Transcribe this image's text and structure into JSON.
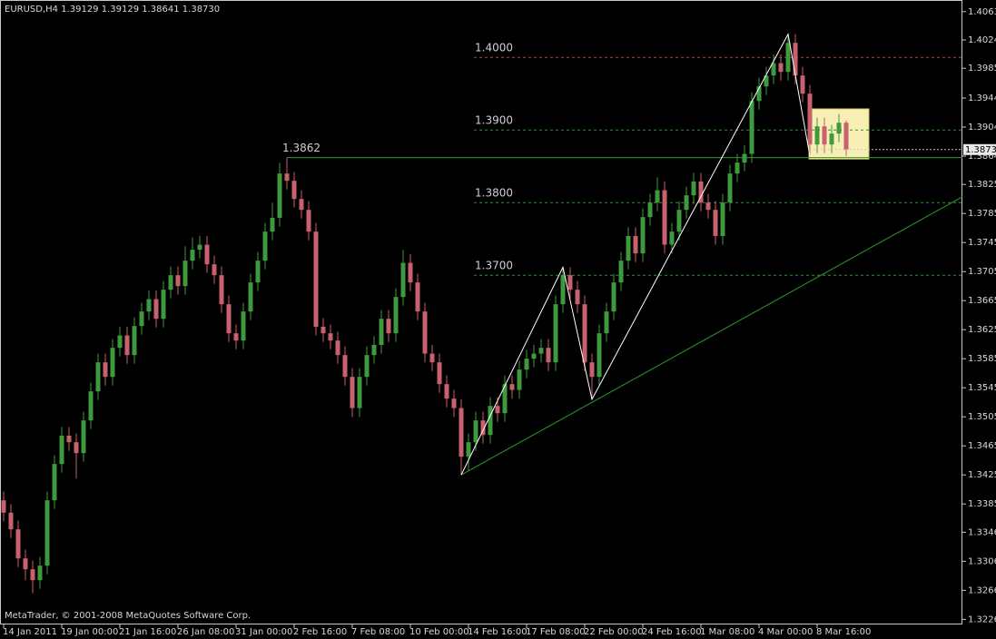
{
  "chart_data": {
    "type": "candlestick",
    "title": "EURUSD,H4  1.39129 1.39129 1.38641 1.38730",
    "footer": "MetaTrader, © 2001-2008 MetaQuotes Software Corp.",
    "up_color": "#3f9a3f",
    "down_color": "#c8606e",
    "categories": [
      "14 Jan 2011",
      null,
      null,
      null,
      null,
      null,
      null,
      null,
      "19 Jan 00:00",
      null,
      null,
      null,
      null,
      null,
      null,
      null,
      "21 Jan 16:00",
      null,
      null,
      null,
      null,
      null,
      null,
      null,
      "26 Jan 08:00",
      null,
      null,
      null,
      null,
      null,
      null,
      null,
      "31 Jan 00:00",
      null,
      null,
      null,
      null,
      null,
      null,
      null,
      "2 Feb 16:00",
      null,
      null,
      null,
      null,
      null,
      null,
      null,
      "7 Feb 08:00",
      null,
      null,
      null,
      null,
      null,
      null,
      null,
      "10 Feb 00:00",
      null,
      null,
      null,
      null,
      null,
      null,
      null,
      "14 Feb 16:00",
      null,
      null,
      null,
      null,
      null,
      null,
      null,
      "17 Feb 08:00",
      null,
      null,
      null,
      null,
      null,
      null,
      null,
      "22 Feb 00:00",
      null,
      null,
      null,
      null,
      null,
      null,
      null,
      "24 Feb 16:00",
      null,
      null,
      null,
      null,
      null,
      null,
      null,
      "1 Mar 08:00",
      null,
      null,
      null,
      null,
      null,
      null,
      null,
      "4 Mar 00:00",
      null,
      null,
      null,
      null,
      null,
      null,
      null,
      "8 Mar 16:00",
      null,
      null,
      null,
      null
    ],
    "open": [
      1.339,
      1.3373,
      1.335,
      1.331,
      1.3295,
      1.328,
      1.33,
      1.339,
      1.344,
      1.3479,
      1.347,
      1.3455,
      1.35,
      1.354,
      1.358,
      1.356,
      1.36,
      1.3617,
      1.359,
      1.363,
      1.365,
      1.3667,
      1.364,
      1.368,
      1.37,
      1.3685,
      1.372,
      1.3735,
      1.3742,
      1.3715,
      1.37,
      1.366,
      1.362,
      1.361,
      1.365,
      1.369,
      1.372,
      1.376,
      1.3779,
      1.384,
      1.383,
      1.3805,
      1.379,
      1.376,
      1.3629,
      1.362,
      1.361,
      1.359,
      1.356,
      1.3517,
      1.356,
      1.359,
      1.3604,
      1.364,
      1.362,
      1.367,
      1.3717,
      1.369,
      1.365,
      1.3592,
      1.358,
      1.355,
      1.353,
      1.3517,
      1.345,
      1.347,
      1.35,
      1.348,
      1.352,
      1.351,
      1.355,
      1.3542,
      1.357,
      1.3585,
      1.3592,
      1.36,
      1.358,
      1.366,
      1.37,
      1.368,
      1.366,
      1.358,
      1.356,
      1.362,
      1.365,
      1.369,
      1.372,
      1.3754,
      1.373,
      1.378,
      1.38,
      1.3817,
      1.3742,
      1.376,
      1.379,
      1.381,
      1.3829,
      1.38,
      1.379,
      1.3754,
      1.38,
      1.384,
      1.3855,
      1.3867,
      1.394,
      1.396,
      1.3975,
      1.3992,
      1.398,
      1.402,
      1.3975,
      1.395,
      1.388,
      1.3905,
      1.388,
      1.3895,
      1.391
    ],
    "high": [
      1.3402,
      1.3385,
      1.3362,
      1.3322,
      1.3307,
      1.3312,
      1.3402,
      1.3452,
      1.3491,
      1.3491,
      1.3482,
      1.3512,
      1.3552,
      1.3592,
      1.3592,
      1.3612,
      1.3629,
      1.3629,
      1.3642,
      1.3662,
      1.3679,
      1.3679,
      1.3692,
      1.3712,
      1.3712,
      1.374,
      1.3752,
      1.3754,
      1.3754,
      1.3727,
      1.3712,
      1.3672,
      1.3632,
      1.3662,
      1.3702,
      1.3732,
      1.3772,
      1.38,
      1.3855,
      1.3862,
      1.3842,
      1.3817,
      1.3802,
      1.3772,
      1.3641,
      1.3632,
      1.3622,
      1.3602,
      1.3572,
      1.3572,
      1.3602,
      1.3616,
      1.3652,
      1.3652,
      1.3682,
      1.3735,
      1.3729,
      1.3702,
      1.3662,
      1.3604,
      1.3592,
      1.3562,
      1.3542,
      1.3529,
      1.3482,
      1.3512,
      1.3512,
      1.3532,
      1.3532,
      1.3562,
      1.3562,
      1.3582,
      1.3597,
      1.3604,
      1.3612,
      1.3612,
      1.3672,
      1.3711,
      1.3711,
      1.3692,
      1.3672,
      1.3592,
      1.3632,
      1.3662,
      1.3702,
      1.3732,
      1.3766,
      1.3766,
      1.3792,
      1.3812,
      1.3835,
      1.3829,
      1.3772,
      1.3802,
      1.3822,
      1.3841,
      1.3841,
      1.3812,
      1.3802,
      1.3812,
      1.3852,
      1.3867,
      1.3879,
      1.3952,
      1.3972,
      1.3987,
      1.4004,
      1.4004,
      1.4032,
      1.4032,
      1.3987,
      1.3962,
      1.3917,
      1.3917,
      1.3907,
      1.3922,
      1.3913
    ],
    "low": [
      1.3361,
      1.3338,
      1.3298,
      1.328,
      1.3262,
      1.3268,
      1.3288,
      1.3378,
      1.3428,
      1.3458,
      1.342,
      1.3443,
      1.3488,
      1.3528,
      1.3548,
      1.3548,
      1.3588,
      1.3578,
      1.3578,
      1.3618,
      1.3638,
      1.3628,
      1.3628,
      1.3668,
      1.3673,
      1.3673,
      1.3708,
      1.3723,
      1.3703,
      1.3688,
      1.3648,
      1.3608,
      1.3598,
      1.3598,
      1.3638,
      1.3678,
      1.3708,
      1.3748,
      1.3767,
      1.3818,
      1.3793,
      1.3778,
      1.3748,
      1.3617,
      1.3608,
      1.3598,
      1.3578,
      1.3548,
      1.3505,
      1.3505,
      1.3548,
      1.3578,
      1.3592,
      1.3608,
      1.3608,
      1.3658,
      1.3678,
      1.3638,
      1.358,
      1.3568,
      1.3538,
      1.3518,
      1.3505,
      1.3425,
      1.343,
      1.3458,
      1.3468,
      1.3468,
      1.3498,
      1.3498,
      1.353,
      1.353,
      1.3558,
      1.3573,
      1.358,
      1.3568,
      1.3568,
      1.3648,
      1.3668,
      1.3648,
      1.3568,
      1.3529,
      1.3548,
      1.3608,
      1.3638,
      1.3678,
      1.3708,
      1.3718,
      1.3718,
      1.3768,
      1.3788,
      1.373,
      1.373,
      1.3748,
      1.3778,
      1.3798,
      1.3788,
      1.3778,
      1.3742,
      1.3742,
      1.3788,
      1.3828,
      1.3843,
      1.3855,
      1.3928,
      1.3948,
      1.3963,
      1.3968,
      1.3968,
      1.3963,
      1.3938,
      1.3864,
      1.3868,
      1.3868,
      1.3868,
      1.3883,
      1.3864
    ],
    "close": [
      1.3373,
      1.335,
      1.331,
      1.3295,
      1.328,
      1.33,
      1.339,
      1.344,
      1.3479,
      1.347,
      1.3455,
      1.35,
      1.354,
      1.358,
      1.356,
      1.36,
      1.3617,
      1.359,
      1.363,
      1.365,
      1.3667,
      1.364,
      1.368,
      1.37,
      1.3685,
      1.372,
      1.3735,
      1.3742,
      1.3715,
      1.37,
      1.366,
      1.362,
      1.361,
      1.365,
      1.369,
      1.372,
      1.376,
      1.3779,
      1.384,
      1.383,
      1.3805,
      1.379,
      1.376,
      1.3629,
      1.362,
      1.361,
      1.359,
      1.356,
      1.3517,
      1.356,
      1.359,
      1.3604,
      1.364,
      1.362,
      1.367,
      1.3717,
      1.369,
      1.365,
      1.3592,
      1.358,
      1.355,
      1.353,
      1.3517,
      1.345,
      1.347,
      1.35,
      1.348,
      1.352,
      1.351,
      1.355,
      1.3542,
      1.357,
      1.3585,
      1.3592,
      1.36,
      1.358,
      1.366,
      1.37,
      1.368,
      1.366,
      1.358,
      1.356,
      1.362,
      1.365,
      1.369,
      1.372,
      1.3754,
      1.373,
      1.378,
      1.38,
      1.3817,
      1.3742,
      1.376,
      1.379,
      1.381,
      1.3829,
      1.38,
      1.379,
      1.3754,
      1.38,
      1.384,
      1.3855,
      1.3867,
      1.394,
      1.396,
      1.3975,
      1.3992,
      1.398,
      1.402,
      1.3975,
      1.395,
      1.388,
      1.3905,
      1.388,
      1.3895,
      1.391,
      1.3873
    ],
    "ylim": [
      1.3219,
      1.4079
    ],
    "yticks": [
      {
        "value": 1.4063,
        "label": "1.40630"
      },
      {
        "value": 1.4024,
        "label": "1.40240"
      },
      {
        "value": 1.3985,
        "label": "1.39850"
      },
      {
        "value": 1.3944,
        "label": "1.39440"
      },
      {
        "value": 1.3904,
        "label": "1.39040"
      },
      {
        "value": 1.3864,
        "label": "1.38640"
      },
      {
        "value": 1.3825,
        "label": "1.38250"
      },
      {
        "value": 1.3785,
        "label": "1.37850"
      },
      {
        "value": 1.3745,
        "label": "1.37450"
      },
      {
        "value": 1.3705,
        "label": "1.37050"
      },
      {
        "value": 1.3665,
        "label": "1.36650"
      },
      {
        "value": 1.3625,
        "label": "1.36250"
      },
      {
        "value": 1.3585,
        "label": "1.35850"
      },
      {
        "value": 1.3545,
        "label": "1.35450"
      },
      {
        "value": 1.3505,
        "label": "1.35050"
      },
      {
        "value": 1.3465,
        "label": "1.34650"
      },
      {
        "value": 1.3425,
        "label": "1.34250"
      },
      {
        "value": 1.3385,
        "label": "1.33850"
      },
      {
        "value": 1.3346,
        "label": "1.33460"
      },
      {
        "value": 1.3306,
        "label": "1.33060"
      },
      {
        "value": 1.3266,
        "label": "1.32660"
      },
      {
        "value": 1.3226,
        "label": "1.32260"
      }
    ],
    "last_price": {
      "value": 1.3873,
      "label": "1.38730"
    },
    "levels": [
      {
        "value": 1.4,
        "label": "1.4000",
        "color": "#b04a3a"
      },
      {
        "value": 1.39,
        "label": "1.3900",
        "color": "#3f8a3f"
      },
      {
        "value": 1.38,
        "label": "1.3800",
        "color": "#3f8a3f"
      },
      {
        "value": 1.37,
        "label": "1.3700",
        "color": "#3f8a3f"
      }
    ],
    "resistance": {
      "value": 1.3862,
      "color": "#2f9a2f"
    },
    "trend_line": {
      "end": 1.3808,
      "color": "#2f9a2f"
    },
    "zigzag_color": "#ffffff",
    "box": {
      "top": 1.3929,
      "bottom": 1.386,
      "color": "#f7efb4"
    }
  }
}
